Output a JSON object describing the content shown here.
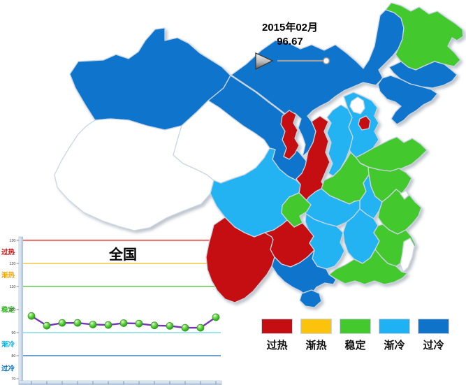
{
  "timeline": {
    "date": "2015年02月",
    "value": "96.67"
  },
  "legend": {
    "items": [
      {
        "id": "overheat",
        "label": "过热",
        "color": "#c40e12"
      },
      {
        "id": "warming",
        "label": "渐热",
        "color": "#fcc30d"
      },
      {
        "id": "stable",
        "label": "稳定",
        "color": "#43c82d"
      },
      {
        "id": "cooling",
        "label": "渐冷",
        "color": "#1eb2f5"
      },
      {
        "id": "overcool",
        "label": "过冷",
        "color": "#0e73c9"
      }
    ]
  },
  "map": {
    "status_colors": {
      "过热": "#c40e12",
      "渐热": "#fcc30d",
      "稳定": "#43c82d",
      "渐冷": "#23b3f2",
      "过冷": "#0f74cc",
      "无数据": "#ffffff"
    },
    "border_color": "#c9d6e2"
  },
  "chart_data": [
    {
      "type": "choropleth",
      "categories": [
        "过热",
        "渐热",
        "稳定",
        "渐冷",
        "过冷"
      ],
      "provinces": [
        {
          "name": "新疆",
          "id": "xinjiang",
          "status": "过冷"
        },
        {
          "name": "西藏",
          "id": "xizang",
          "status": "无数据"
        },
        {
          "name": "青海",
          "id": "qinghai",
          "status": "无数据"
        },
        {
          "name": "甘肃",
          "id": "gansu",
          "status": "过冷"
        },
        {
          "name": "内蒙古",
          "id": "neimenggu",
          "status": "过冷"
        },
        {
          "name": "黑龙江",
          "id": "heilongjiang",
          "status": "稳定"
        },
        {
          "name": "吉林",
          "id": "jilin",
          "status": "过冷"
        },
        {
          "name": "辽宁",
          "id": "liaoning",
          "status": "过冷"
        },
        {
          "name": "河北",
          "id": "hebei",
          "status": "渐冷"
        },
        {
          "name": "北京",
          "id": "beijing",
          "status": "无数据"
        },
        {
          "name": "天津",
          "id": "tianjin",
          "status": "过热"
        },
        {
          "name": "山西",
          "id": "shanxi",
          "status": "渐冷"
        },
        {
          "name": "陕西",
          "id": "shaanxi",
          "status": "过热"
        },
        {
          "name": "宁夏",
          "id": "ningxia",
          "status": "过热"
        },
        {
          "name": "山东",
          "id": "shandong",
          "status": "稳定"
        },
        {
          "name": "河南",
          "id": "henan",
          "status": "稳定"
        },
        {
          "name": "江苏",
          "id": "jiangsu",
          "status": "稳定"
        },
        {
          "name": "安徽",
          "id": "anhui",
          "status": "渐冷"
        },
        {
          "name": "上海",
          "id": "shanghai",
          "status": "无数据"
        },
        {
          "name": "浙江",
          "id": "zhejiang",
          "status": "稳定"
        },
        {
          "name": "湖北",
          "id": "hubei",
          "status": "渐冷"
        },
        {
          "name": "重庆",
          "id": "chongqing",
          "status": "稳定"
        },
        {
          "name": "四川",
          "id": "sichuan",
          "status": "渐冷"
        },
        {
          "name": "云南",
          "id": "yunnan",
          "status": "过热"
        },
        {
          "name": "贵州",
          "id": "guizhou",
          "status": "过热"
        },
        {
          "name": "湖南",
          "id": "hunan",
          "status": "渐冷"
        },
        {
          "name": "江西",
          "id": "jiangxi",
          "status": "渐冷"
        },
        {
          "name": "福建",
          "id": "fujian",
          "status": "稳定"
        },
        {
          "name": "广东",
          "id": "guangdong",
          "status": "稳定"
        },
        {
          "name": "广西",
          "id": "guangxi",
          "status": "过冷"
        },
        {
          "name": "海南",
          "id": "hainan",
          "status": "过冷"
        },
        {
          "name": "台湾",
          "id": "taiwan",
          "status": "无数据"
        }
      ]
    },
    {
      "type": "line",
      "title": "全国",
      "current_period": "2015年02月",
      "current_value": 96.67,
      "x_count": 13,
      "values": [
        97.2,
        93.0,
        94.2,
        94.2,
        93.5,
        93.3,
        94.1,
        93.9,
        93.1,
        92.9,
        92.1,
        92.1,
        96.67
      ],
      "yticks": [
        130,
        120,
        110,
        100,
        90,
        80,
        70
      ],
      "ylim": [
        70,
        134
      ],
      "line_color": "#7733bb",
      "marker_color": "#3fbf2c",
      "thresholds": [
        {
          "label": "过热",
          "value": 130,
          "line_color": "#e87a7a",
          "label_color": "#d40000"
        },
        {
          "label": "渐热",
          "value": 120,
          "line_color": "#f7c54a",
          "label_color": "#f5a300"
        },
        {
          "label": "稳定",
          "value": 110,
          "line_color": "#5fc84f",
          "label_color": "#2fb01e"
        },
        {
          "label": "渐冷",
          "value": 90,
          "line_color": "#7ddbe8",
          "label_color": "#00b2f0"
        },
        {
          "label": "过冷",
          "value": 80,
          "line_color": "#3c7fc0",
          "label_color": "#0071c8"
        }
      ]
    }
  ]
}
